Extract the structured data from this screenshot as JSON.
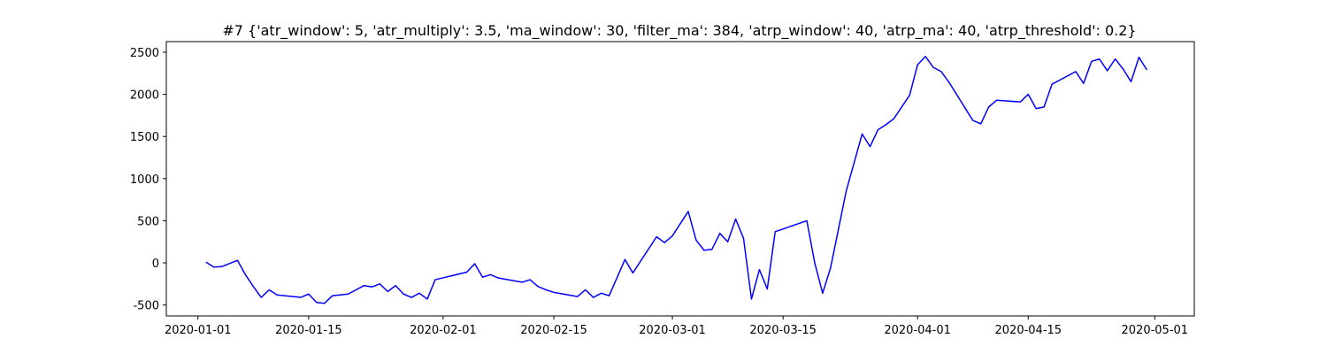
{
  "chart_data": {
    "type": "line",
    "title": "#7 {'atr_window': 5, 'atr_multiply': 3.5, 'ma_window': 30, 'filter_ma': 384, 'atrp_window': 40, 'atrp_ma': 40, 'atrp_threshold': 0.2}",
    "color": "#0000ff",
    "x": [
      "2020-01-02",
      "2020-01-03",
      "2020-01-04",
      "2020-01-06",
      "2020-01-07",
      "2020-01-08",
      "2020-01-09",
      "2020-01-10",
      "2020-01-11",
      "2020-01-14",
      "2020-01-15",
      "2020-01-16",
      "2020-01-17",
      "2020-01-18",
      "2020-01-20",
      "2020-01-22",
      "2020-01-23",
      "2020-01-24",
      "2020-01-25",
      "2020-01-26",
      "2020-01-27",
      "2020-01-28",
      "2020-01-29",
      "2020-01-30",
      "2020-01-31",
      "2020-02-04",
      "2020-02-05",
      "2020-02-06",
      "2020-02-07",
      "2020-02-08",
      "2020-02-11",
      "2020-02-12",
      "2020-02-13",
      "2020-02-14",
      "2020-02-15",
      "2020-02-18",
      "2020-02-19",
      "2020-02-20",
      "2020-02-21",
      "2020-02-22",
      "2020-02-24",
      "2020-02-25",
      "2020-02-28",
      "2020-02-29",
      "2020-03-01",
      "2020-03-03",
      "2020-03-04",
      "2020-03-05",
      "2020-03-06",
      "2020-03-07",
      "2020-03-08",
      "2020-03-09",
      "2020-03-10",
      "2020-03-11",
      "2020-03-12",
      "2020-03-13",
      "2020-03-14",
      "2020-03-18",
      "2020-03-19",
      "2020-03-20",
      "2020-03-21",
      "2020-03-23",
      "2020-03-25",
      "2020-03-26",
      "2020-03-27",
      "2020-03-28",
      "2020-03-29",
      "2020-03-31",
      "2020-04-01",
      "2020-04-02",
      "2020-04-03",
      "2020-04-04",
      "2020-04-05",
      "2020-04-07",
      "2020-04-08",
      "2020-04-09",
      "2020-04-10",
      "2020-04-11",
      "2020-04-14",
      "2020-04-15",
      "2020-04-16",
      "2020-04-17",
      "2020-04-18",
      "2020-04-21",
      "2020-04-22",
      "2020-04-23",
      "2020-04-24",
      "2020-04-25",
      "2020-04-26",
      "2020-04-27",
      "2020-04-28",
      "2020-04-29",
      "2020-04-30"
    ],
    "values": [
      10,
      -50,
      -45,
      30,
      -140,
      -280,
      -410,
      -320,
      -380,
      -410,
      -370,
      -470,
      -480,
      -390,
      -370,
      -270,
      -285,
      -250,
      -340,
      -270,
      -370,
      -410,
      -360,
      -430,
      -200,
      -110,
      -10,
      -170,
      -140,
      -180,
      -230,
      -200,
      -280,
      -320,
      -350,
      -400,
      -320,
      -410,
      -360,
      -390,
      40,
      -120,
      310,
      240,
      320,
      610,
      270,
      150,
      160,
      350,
      250,
      520,
      290,
      -430,
      -80,
      -310,
      370,
      500,
      0,
      -360,
      -60,
      860,
      1530,
      1380,
      1580,
      1640,
      1710,
      1990,
      2350,
      2450,
      2320,
      2270,
      2140,
      1840,
      1690,
      1650,
      1850,
      1930,
      1910,
      2000,
      1830,
      1850,
      2120,
      2270,
      2130,
      2390,
      2420,
      2280,
      2420,
      2300,
      2150,
      2440,
      2290
    ],
    "xlim": [
      "2019-12-28",
      "2020-05-06"
    ],
    "xticks": [
      "2020-01-01",
      "2020-01-15",
      "2020-02-01",
      "2020-02-15",
      "2020-03-01",
      "2020-03-15",
      "2020-04-01",
      "2020-04-15",
      "2020-05-01"
    ],
    "ylim": [
      -630,
      2626
    ],
    "yticks": [
      -500,
      0,
      500,
      1000,
      1500,
      2000,
      2500
    ]
  }
}
